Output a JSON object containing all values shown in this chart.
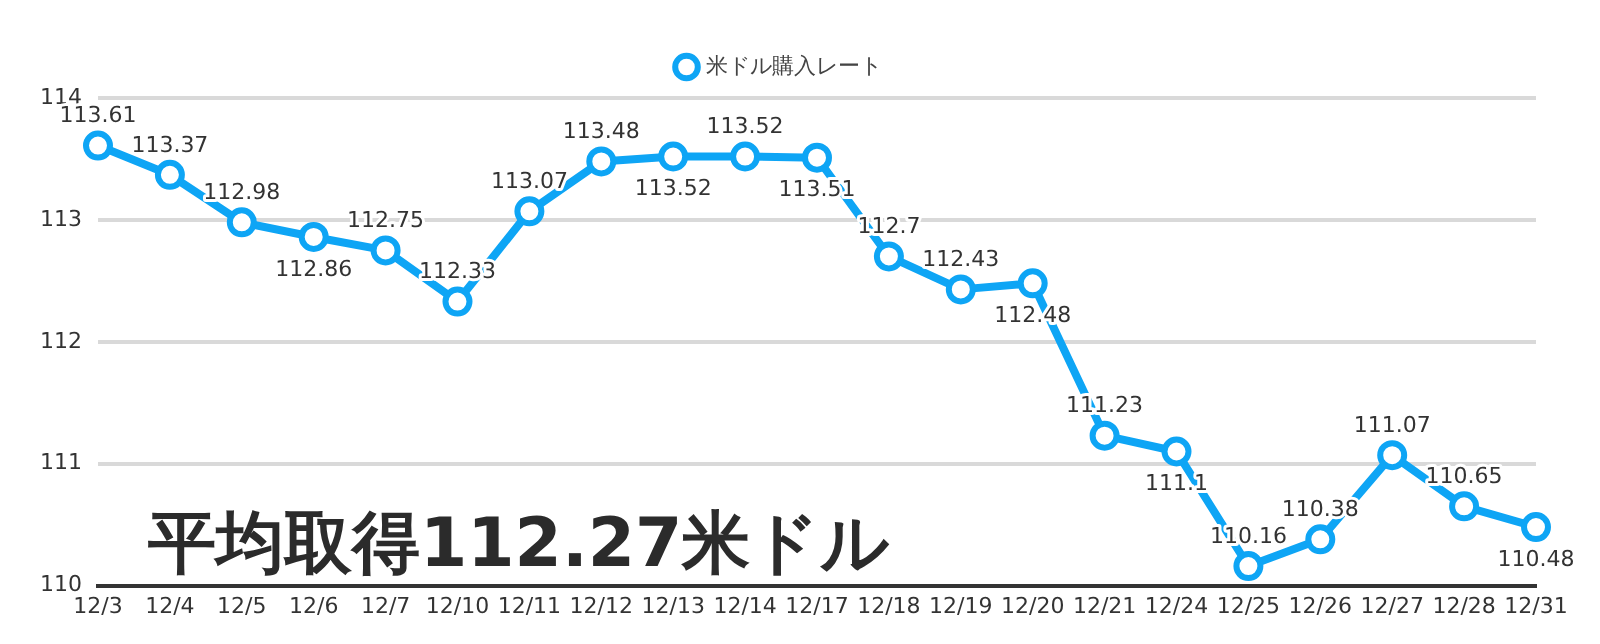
{
  "chart_data": {
    "type": "line",
    "categories": [
      "12/3",
      "12/4",
      "12/5",
      "12/6",
      "12/7",
      "12/10",
      "12/11",
      "12/12",
      "12/13",
      "12/14",
      "12/17",
      "12/18",
      "12/19",
      "12/20",
      "12/21",
      "12/24",
      "12/25",
      "12/26",
      "12/27",
      "12/28",
      "12/31"
    ],
    "series": [
      {
        "name": "米ドル購入レート",
        "color": "#0ea5f5",
        "values": [
          113.61,
          113.37,
          112.98,
          112.86,
          112.75,
          112.33,
          113.07,
          113.48,
          113.52,
          113.52,
          113.51,
          112.7,
          112.43,
          112.48,
          111.23,
          111.1,
          110.16,
          110.38,
          111.07,
          110.65,
          110.48
        ]
      }
    ],
    "ylim": [
      110,
      114
    ],
    "yticks": [
      110,
      111,
      112,
      113,
      114
    ],
    "grid": "y",
    "legend": "top",
    "marker": "circle",
    "line_style": "solid",
    "data_labels": true,
    "annotations": [
      "平均取得112.27米ドル"
    ]
  }
}
